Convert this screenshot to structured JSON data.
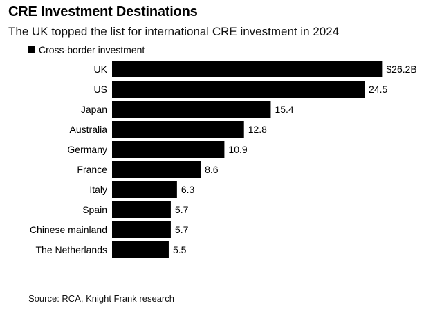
{
  "chart_data": {
    "type": "bar",
    "orientation": "horizontal",
    "title": "CRE Investment Destinations",
    "subtitle": "The UK topped the list for international CRE investment in 2024",
    "legend": "Cross-border investment",
    "legend_position": "top-left",
    "categories": [
      "UK",
      "US",
      "Japan",
      "Australia",
      "Germany",
      "France",
      "Italy",
      "Spain",
      "Chinese mainland",
      "The Netherlands"
    ],
    "values": [
      26.2,
      24.5,
      15.4,
      12.8,
      10.9,
      8.6,
      6.3,
      5.7,
      5.7,
      5.5
    ],
    "value_labels": [
      "$26.2B",
      "24.5",
      "15.4",
      "12.8",
      "10.9",
      "8.6",
      "6.3",
      "5.7",
      "5.7",
      "5.5"
    ],
    "bar_color": "#000000",
    "grid": false,
    "source": "Source: RCA, Knight Frank research"
  }
}
